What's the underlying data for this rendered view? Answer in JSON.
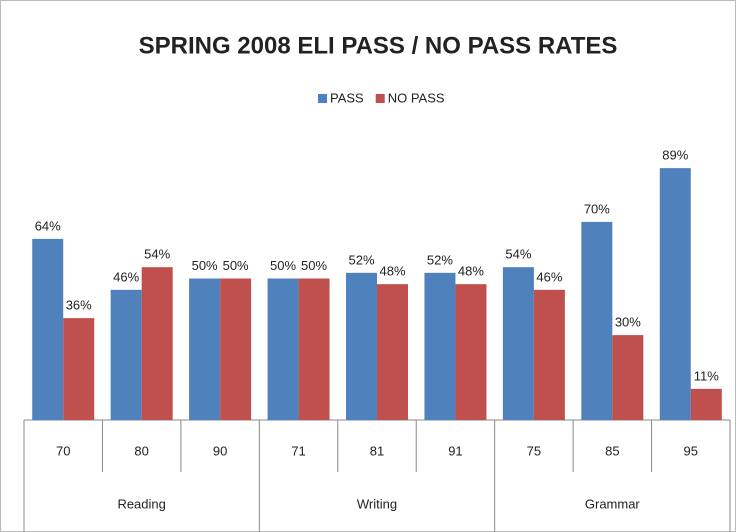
{
  "chart_data": {
    "type": "bar",
    "title": "SPRING 2008 ELI PASS / NO PASS RATES",
    "groups": [
      {
        "name": "Reading",
        "categories": [
          "70",
          "80",
          "90"
        ]
      },
      {
        "name": "Writing",
        "categories": [
          "71",
          "81",
          "91"
        ]
      },
      {
        "name": "Grammar",
        "categories": [
          "75",
          "85",
          "95"
        ]
      }
    ],
    "series": [
      {
        "name": "PASS",
        "color": "#4f81bd",
        "values": [
          64,
          46,
          50,
          50,
          52,
          52,
          54,
          70,
          89
        ],
        "value_labels": [
          "64%",
          "46%",
          "50%",
          "50%",
          "52%",
          "52%",
          "54%",
          "70%",
          "89%"
        ]
      },
      {
        "name": "NO PASS",
        "color": "#c0504d",
        "values": [
          36,
          54,
          50,
          50,
          48,
          48,
          46,
          30,
          11
        ],
        "value_labels": [
          "36%",
          "54%",
          "50%",
          "50%",
          "48%",
          "48%",
          "46%",
          "30%",
          "11%"
        ]
      }
    ],
    "ylim": [
      0,
      100
    ],
    "legend": "top"
  }
}
